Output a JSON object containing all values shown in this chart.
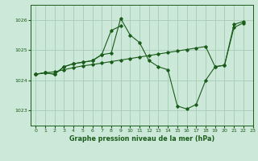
{
  "background_color": "#cce8d8",
  "grid_color": "#aacfbb",
  "line_color": "#1a5c1a",
  "title": "Graphe pression niveau de la mer (hPa)",
  "xlim": [
    -0.5,
    23
  ],
  "ylim": [
    1022.5,
    1026.5
  ],
  "yticks": [
    1023,
    1024,
    1025,
    1026
  ],
  "xticks": [
    0,
    1,
    2,
    3,
    4,
    5,
    6,
    7,
    8,
    9,
    10,
    11,
    12,
    13,
    14,
    15,
    16,
    17,
    18,
    19,
    20,
    21,
    22,
    23
  ],
  "series1_x": [
    0,
    1,
    2,
    3,
    4,
    5,
    6,
    7,
    8,
    9,
    10,
    11,
    12,
    13,
    14,
    15,
    16,
    17,
    18,
    19,
    20,
    21,
    22
  ],
  "series1_y": [
    1024.2,
    1024.25,
    1024.2,
    1024.45,
    1024.55,
    1024.6,
    1024.65,
    1024.85,
    1024.9,
    1026.05,
    1025.5,
    1025.25,
    1024.65,
    1024.45,
    1024.35,
    1023.15,
    1023.05,
    1023.2,
    1024.0,
    1024.45,
    1024.5,
    1025.75,
    1025.9
  ],
  "series2_x": [
    0,
    1,
    2,
    3,
    4,
    5,
    6,
    7,
    8,
    9
  ],
  "series2_y": [
    1024.2,
    1024.25,
    1024.2,
    1024.45,
    1024.55,
    1024.6,
    1024.65,
    1024.85,
    1025.65,
    1025.8
  ],
  "series3_x": [
    0,
    1,
    2,
    3,
    4,
    5,
    6,
    7,
    8,
    9,
    10,
    11,
    12,
    13,
    14,
    15,
    16,
    17,
    18,
    19,
    20,
    21,
    22
  ],
  "series3_y": [
    1024.2,
    1024.25,
    1024.28,
    1024.35,
    1024.42,
    1024.48,
    1024.52,
    1024.57,
    1024.62,
    1024.67,
    1024.72,
    1024.77,
    1024.82,
    1024.87,
    1024.92,
    1024.97,
    1025.02,
    1025.07,
    1025.12,
    1024.45,
    1024.5,
    1025.85,
    1025.95
  ]
}
